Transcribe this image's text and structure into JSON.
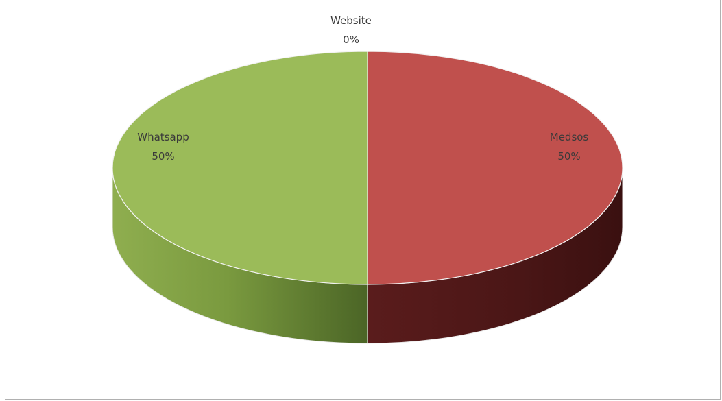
{
  "chart_data": {
    "type": "pie",
    "style": "3d",
    "categories": [
      "Medsos",
      "Website",
      "Whatsapp"
    ],
    "values": [
      50,
      0,
      50
    ],
    "percent_labels": [
      "50%",
      "0%",
      "50%"
    ],
    "colors": {
      "Medsos": "#c0504d",
      "Website": "#4f81bd",
      "Whatsapp": "#9bbb59"
    },
    "legend": "none",
    "data_labels": "category-and-percent"
  }
}
